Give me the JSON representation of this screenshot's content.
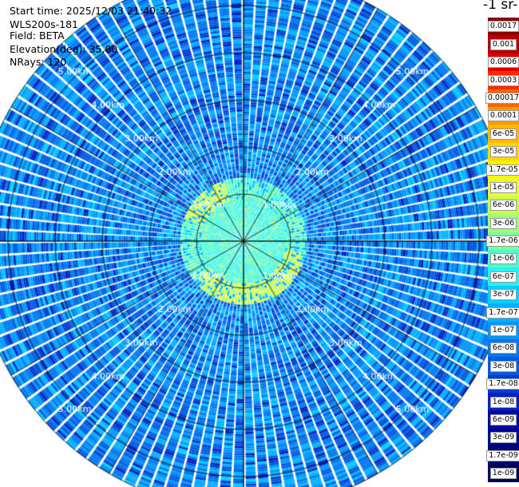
{
  "header": {
    "start_time": "Start time: 2025/12/03 21:40:32",
    "instrument": "WLS200s-181",
    "field": "Field: BETA",
    "elevation": "Elevation(deg): 35.00",
    "nrays": "NRays: 120"
  },
  "colorbar": {
    "unit_label": "-1 sr-",
    "labels": [
      "0.0017",
      "0.001",
      "0.0006",
      "0.0003",
      "0.00017",
      "0.0001",
      "6e-05",
      "3e-05",
      "1.7e-05",
      "1e-05",
      "6e-06",
      "3e-06",
      "1.7e-06",
      "1e-06",
      "6e-07",
      "3e-07",
      "1.7e-07",
      "1e-07",
      "6e-08",
      "3e-08",
      "1.7e-08",
      "1e-08",
      "6e-09",
      "3e-09",
      "1.7e-09",
      "1e-09"
    ],
    "colors": [
      "#8b0000",
      "#b20000",
      "#e00000",
      "#ff2a00",
      "#ff6400",
      "#ff9900",
      "#ffb700",
      "#ffd600",
      "#fff200",
      "#e8ff2e",
      "#c8ff4a",
      "#a2ff74",
      "#7aff9c",
      "#4dffca",
      "#2ef0f0",
      "#00d0ff",
      "#00b2ff",
      "#0096ff",
      "#0078f0",
      "#005ae0",
      "#003cd0",
      "#0020c0",
      "#0008a8",
      "#000090",
      "#000078",
      "#00005a"
    ]
  },
  "chart_data": {
    "type": "heatmap",
    "projection": "polar (PPI scan)",
    "field": "BETA",
    "elevation_deg": 35.0,
    "n_rays": 120,
    "range_rings_km": [
      1,
      2,
      3,
      4,
      5
    ],
    "range_ring_labels": {
      "1": [
        "1.00km",
        "1.00km",
        "1.00km",
        "1.00km"
      ],
      "2": [
        "2.00km",
        "2.00km",
        "2.00km",
        "2.00km"
      ],
      "3": [
        "3.00km",
        "3.00km",
        "3.00km",
        "3.00km"
      ],
      "4": [
        "4.00km",
        "4.00km",
        "4.00km",
        "4.00km"
      ],
      "5": [
        "5.00km",
        "5.00km",
        "5.00km",
        "5.00km"
      ]
    },
    "max_range_km": 5.7,
    "spoke_interval_deg": 30,
    "colorscale": "log",
    "value_range": [
      1e-09,
      0.0017
    ],
    "dominant_values": {
      "far_range_background": "1e-08 to 3e-08",
      "near_ring_highlight": "1.7e-06 to 1e-05",
      "inner_core": "1.7e-07 to 6e-07"
    },
    "grid": true
  }
}
